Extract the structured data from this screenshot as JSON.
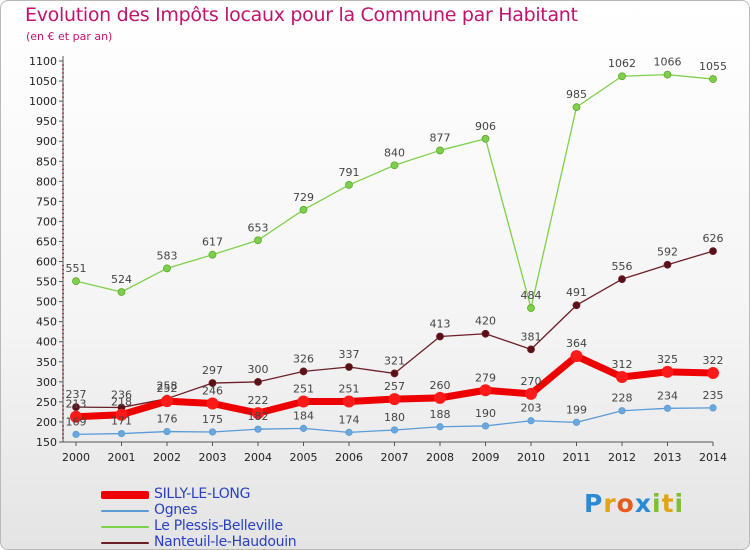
{
  "header": {
    "title": "Evolution des Impôts locaux pour la Commune par Habitant",
    "subtitle": "(en € et par an)"
  },
  "logo": {
    "letters": [
      "P",
      "r",
      "o",
      "x",
      "i",
      "t",
      "i"
    ],
    "colors": [
      "#2a8ad4",
      "#e0a414",
      "#e65a1e",
      "#2a8ad4",
      "#7dbf2e",
      "#e0a414",
      "#7dbf2e"
    ]
  },
  "chart_data": {
    "type": "line",
    "title": "Evolution des Impôts locaux pour la Commune par Habitant",
    "subtitle": "(en € et par an)",
    "x": [
      2000,
      2001,
      2002,
      2003,
      2004,
      2005,
      2006,
      2007,
      2008,
      2009,
      2010,
      2011,
      2012,
      2013,
      2014
    ],
    "ylim": [
      150,
      1100
    ],
    "ytick_step": 50,
    "grid": false,
    "legend_position": "bottom-left",
    "series": [
      {
        "name": "SILLY-LE-LONG",
        "color": "#ee0000",
        "values": [
          213,
          218,
          252,
          246,
          222,
          251,
          251,
          257,
          260,
          279,
          270,
          364,
          312,
          325,
          322
        ],
        "labels": [
          "213",
          "218",
          "252",
          "246",
          "222",
          "251",
          "251",
          "257",
          "260",
          "279",
          "270",
          "364",
          "312",
          "325",
          "322"
        ]
      },
      {
        "name": "Ognes",
        "color": "#5b9bd5",
        "values": [
          169,
          171,
          176,
          175,
          182,
          184,
          174,
          180,
          188,
          190,
          203,
          199,
          228,
          234,
          235
        ],
        "labels": [
          "169",
          "171",
          "176",
          "175",
          "182",
          "184",
          "174",
          "180",
          "188",
          "190",
          "203",
          "199",
          "228",
          "234",
          "235"
        ]
      },
      {
        "name": "Le Plessis-Belleville",
        "color": "#7ed04b",
        "values": [
          551,
          524,
          583,
          617,
          653,
          729,
          791,
          840,
          877,
          906,
          484,
          985,
          1062,
          1066,
          1055
        ],
        "labels": [
          "551",
          "524",
          "583",
          "617",
          "653",
          "729",
          "791",
          "840",
          "877",
          "906",
          "484",
          "985",
          "1062",
          "1066",
          "1055"
        ]
      },
      {
        "name": "Nanteuil-le-Haudouin",
        "color": "#6b1e26",
        "values": [
          237,
          236,
          258,
          297,
          300,
          326,
          337,
          321,
          413,
          420,
          381,
          491,
          556,
          592,
          626
        ],
        "labels": [
          "237",
          "236",
          "258",
          "297",
          "300",
          "326",
          "337",
          "321",
          "413",
          "420",
          "381",
          "491",
          "556",
          "592",
          "626"
        ]
      }
    ]
  }
}
